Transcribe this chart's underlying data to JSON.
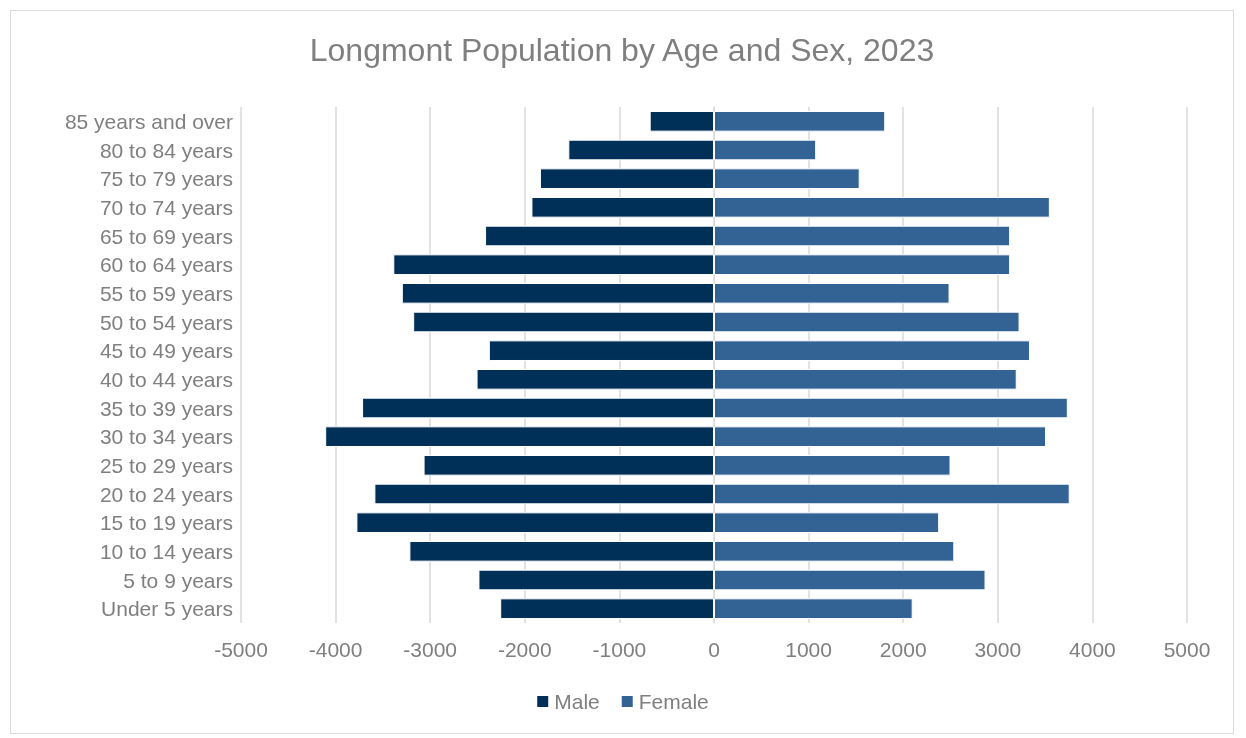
{
  "chart_data": {
    "type": "bar",
    "orientation": "horizontal",
    "title": "Longmont Population by Age and Sex, 2023",
    "categories": [
      "85 years and over",
      "80 to 84 years",
      "75 to 79 years",
      "70 to 74 years",
      "65 to 69 years",
      "60 to 64 years",
      "55 to 59 years",
      "50 to 54 years",
      "45 to 49 years",
      "40 to 44 years",
      "35 to 39 years",
      "30 to 34 years",
      "25 to 29 years",
      "20 to 24 years",
      "15 to 19 years",
      "10 to 14 years",
      "5 to 9 years",
      "Under 5 years"
    ],
    "series": [
      {
        "name": "Male",
        "color": "#003057",
        "values": [
          -680,
          -1540,
          -1840,
          -1930,
          -2420,
          -3390,
          -3300,
          -3180,
          -2380,
          -2510,
          -3720,
          -4110,
          -3070,
          -3590,
          -3780,
          -3220,
          -2490,
          -2260
        ]
      },
      {
        "name": "Female",
        "color": "#336294",
        "values": [
          1810,
          1080,
          1540,
          3550,
          3130,
          3130,
          2490,
          3230,
          3340,
          3200,
          3740,
          3510,
          2500,
          3760,
          2380,
          2540,
          2870,
          2100
        ]
      }
    ],
    "xlim": [
      -5000,
      5000
    ],
    "xticks": [
      -5000,
      -4000,
      -3000,
      -2000,
      -1000,
      0,
      1000,
      2000,
      3000,
      4000,
      5000
    ],
    "grid": "x",
    "legend": "bottom",
    "stacked": true
  }
}
